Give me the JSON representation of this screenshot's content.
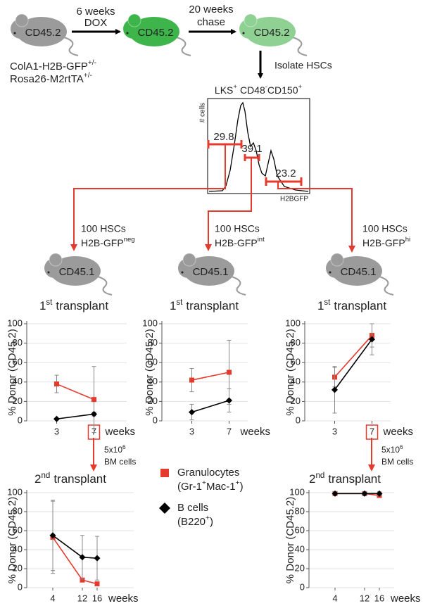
{
  "header": {
    "donor_mice": [
      "CD45.2",
      "CD45.2",
      "CD45.2"
    ],
    "step1": [
      "6 weeks",
      "DOX"
    ],
    "step2": [
      "20 weeks",
      "chase"
    ],
    "genotype": [
      {
        "text": "ColA1-H2B-GFP",
        "sup": "+/-"
      },
      {
        "text": "Rosa26-M2rtTA",
        "sup": "+/-"
      }
    ],
    "isolate": "Isolate HSCs"
  },
  "histogram": {
    "title": [
      {
        "text": "LKS",
        "sup": "+"
      },
      {
        "text": "CD48",
        "sup": "-"
      },
      {
        "text": "CD150",
        "sup": "+"
      }
    ],
    "y_label": "# cells",
    "x_label": "H2BGFP",
    "gates": [
      29.8,
      39.1,
      23.2
    ]
  },
  "groups": [
    {
      "cells": "100 HSCs",
      "marker": "H2B-GFP",
      "sup": "neg",
      "recipient": "CD45.1"
    },
    {
      "cells": "100 HSCs",
      "marker": "H2B-GFP",
      "sup": "int",
      "recipient": "CD45.1"
    },
    {
      "cells": "100 HSCs",
      "marker": "H2B-GFP",
      "sup": "hi",
      "recipient": "CD45.1"
    }
  ],
  "annotations": [
    {
      "text": "5x10",
      "sup": "6",
      "line2": "BM cells"
    },
    {
      "text": "5x10",
      "sup": "6",
      "line2": "BM cells"
    }
  ],
  "legend": [
    {
      "name": "Granulocytes",
      "detail": [
        {
          "text": "(Gr-1",
          "sup": "+"
        },
        {
          "text": "Mac-1",
          "sup": "+"
        },
        {
          "text": ")"
        }
      ],
      "color": "#e53a2e",
      "marker": "square"
    },
    {
      "name": "B cells",
      "detail": [
        {
          "text": "(B220",
          "sup": "+"
        },
        {
          "text": ")"
        }
      ],
      "color": "#000000",
      "marker": "diamond"
    }
  ],
  "chart_data": [
    {
      "type": "line",
      "title": {
        "num": "1",
        "sup": "st",
        "text": "transplant"
      },
      "y_label": "% Donor (CD45.2)",
      "x_label": "weeks",
      "x": [
        3,
        7
      ],
      "xlim": [
        1,
        9
      ],
      "xticks": [
        3,
        7
      ],
      "highlight_xtick": 7,
      "ylim": [
        0,
        100
      ],
      "yticks": [
        0,
        20,
        40,
        60,
        80,
        100
      ],
      "grid": true,
      "series": [
        {
          "color": "#e53a2e",
          "marker": "square",
          "values": [
            38,
            22
          ],
          "errors": [
            9,
            34
          ]
        },
        {
          "color": "#000000",
          "marker": "diamond",
          "values": [
            2,
            7
          ],
          "errors": [
            1,
            2
          ]
        }
      ]
    },
    {
      "type": "line",
      "title": {
        "num": "1",
        "sup": "st",
        "text": "transplant"
      },
      "y_label": "% Donor (CD45.2)",
      "x_label": "weeks",
      "x": [
        3,
        7
      ],
      "xlim": [
        1,
        9
      ],
      "xticks": [
        3,
        7
      ],
      "ylim": [
        0,
        100
      ],
      "yticks": [
        0,
        20,
        40,
        60,
        80,
        100
      ],
      "grid": true,
      "series": [
        {
          "color": "#e53a2e",
          "marker": "square",
          "values": [
            42,
            50
          ],
          "errors": [
            12,
            33
          ]
        },
        {
          "color": "#000000",
          "marker": "diamond",
          "values": [
            9,
            21
          ],
          "errors": [
            8,
            12
          ]
        }
      ]
    },
    {
      "type": "line",
      "title": {
        "num": "1",
        "sup": "st",
        "text": "transplant"
      },
      "y_label": "% Donor (CD45.2)",
      "x_label": "weeks",
      "x": [
        3,
        7
      ],
      "xlim": [
        1,
        9
      ],
      "xticks": [
        3,
        7
      ],
      "highlight_xtick": 7,
      "ylim": [
        0,
        100
      ],
      "yticks": [
        0,
        20,
        40,
        60,
        80,
        100
      ],
      "grid": true,
      "series": [
        {
          "color": "#e53a2e",
          "marker": "square",
          "values": [
            45,
            88
          ],
          "errors": [
            10,
            12
          ]
        },
        {
          "color": "#000000",
          "marker": "diamond",
          "values": [
            32,
            84
          ],
          "errors": [
            24,
            16
          ]
        }
      ]
    },
    {
      "type": "line",
      "title": {
        "num": "2",
        "sup": "nd",
        "text": "transplant"
      },
      "y_label": "% Donor (CD45.2)",
      "x_label": "weeks",
      "x": [
        4,
        12,
        16
      ],
      "xlim": [
        0,
        20
      ],
      "xticks": [
        4,
        12,
        16
      ],
      "ylim": [
        0,
        100
      ],
      "yticks": [
        0,
        20,
        40,
        60,
        80,
        100
      ],
      "grid": true,
      "series": [
        {
          "color": "#e53a2e",
          "marker": "square",
          "values": [
            53,
            8,
            4
          ],
          "errors": [
            38,
            2,
            2
          ]
        },
        {
          "color": "#000000",
          "marker": "diamond",
          "values": [
            55,
            32,
            31
          ],
          "errors": [
            37,
            23,
            23
          ]
        }
      ]
    },
    {
      "type": "line",
      "title": {
        "num": "2",
        "sup": "nd",
        "text": "transplant"
      },
      "y_label": "% Donor (CD45.2)",
      "x_label": "weeks",
      "x": [
        4,
        12,
        16
      ],
      "xlim": [
        0,
        20
      ],
      "xticks": [
        4,
        12,
        16
      ],
      "ylim": [
        0,
        100
      ],
      "yticks": [
        0,
        20,
        40,
        60,
        80,
        100
      ],
      "grid": true,
      "series": [
        {
          "color": "#e53a2e",
          "marker": "square",
          "values": [
            99,
            99,
            97
          ],
          "errors": [
            1,
            1,
            2
          ]
        },
        {
          "color": "#000000",
          "marker": "diamond",
          "values": [
            99,
            99,
            99
          ],
          "errors": [
            2,
            2,
            2
          ]
        }
      ]
    }
  ]
}
